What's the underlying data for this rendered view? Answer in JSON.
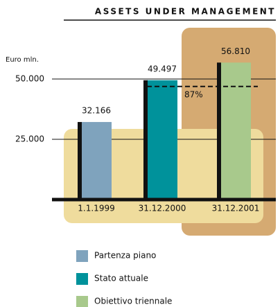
{
  "chart_data": {
    "type": "bar",
    "title": "ASSETS UNDER MANAGEMENT",
    "y_label": "Euro mln.",
    "categories": [
      "1.1.1999",
      "31.12.2000",
      "31.12.2001"
    ],
    "values": [
      32166,
      49497,
      56810
    ],
    "value_labels": [
      "32.166",
      "49.497",
      "56.810"
    ],
    "colors": [
      "#7fa3bd",
      "#00929b",
      "#a8c98c"
    ],
    "legend": [
      "Partenza piano",
      "Stato attuale",
      "Obiettivo triennale"
    ],
    "annotation": "87%",
    "ylim": [
      0,
      70000
    ],
    "yticks": [
      {
        "value": 25000,
        "label": "25.000"
      },
      {
        "value": 50000,
        "label": "50.000"
      }
    ],
    "grid": true
  }
}
